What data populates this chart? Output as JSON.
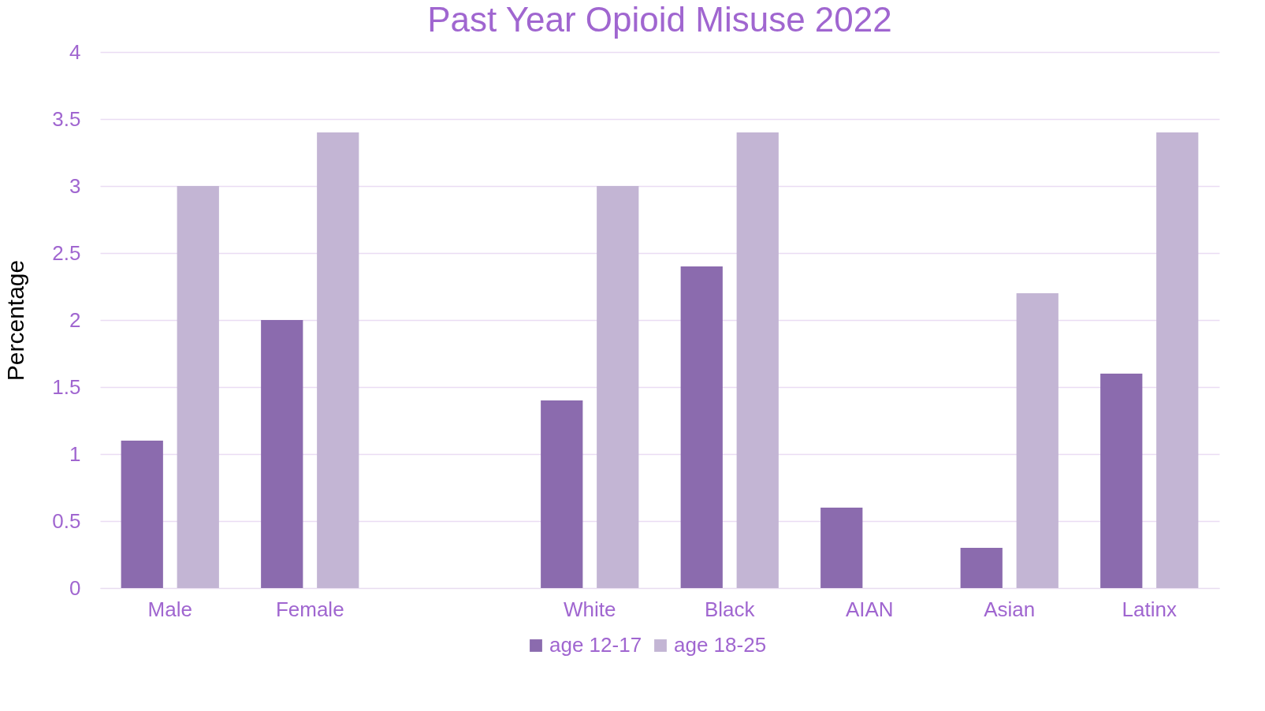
{
  "chart_data": {
    "type": "bar",
    "title": "Past Year Opioid Misuse 2022",
    "ylabel": "Percentage",
    "categories": [
      "Male",
      "Female",
      null,
      "White",
      "Black",
      "AIAN",
      "Asian",
      "Latinx"
    ],
    "series": [
      {
        "name": "age 12-17",
        "color": "#8b6bae",
        "values": [
          1.1,
          2.0,
          null,
          1.4,
          2.4,
          0.6,
          0.3,
          1.6
        ]
      },
      {
        "name": "age 18-25",
        "color": "#c3b5d4",
        "values": [
          3.0,
          3.4,
          null,
          3.0,
          3.4,
          null,
          2.2,
          3.4
        ]
      }
    ],
    "ylim": [
      0,
      4
    ],
    "yticks": [
      0,
      0.5,
      1,
      1.5,
      2,
      2.5,
      3,
      3.5,
      4
    ],
    "grid": "y",
    "legend": "bottom"
  }
}
